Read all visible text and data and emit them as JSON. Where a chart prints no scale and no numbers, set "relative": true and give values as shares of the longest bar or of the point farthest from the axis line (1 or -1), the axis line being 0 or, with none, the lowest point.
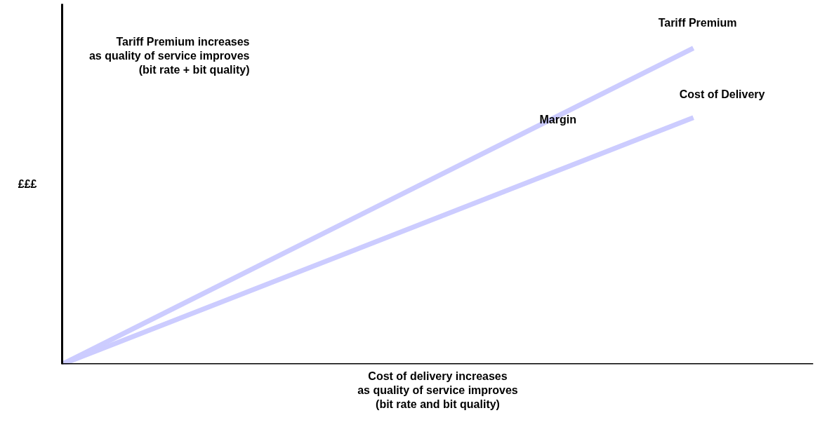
{
  "chart_data": {
    "type": "line",
    "relative": true,
    "categories": [
      null,
      null
    ],
    "xlabel": "Cost of delivery increases\nas quality of service improves\n(bit rate and bit quality)",
    "ylabel": "£££",
    "annotations": [
      "Tariff Premium increases\nas quality of service improves\n(bit rate + bit quality)",
      "Margin"
    ],
    "series": [
      {
        "name": "Tariff Premium",
        "color": "#ccccff",
        "values": [
          0,
          1
        ]
      },
      {
        "name": "Cost of Delivery",
        "color": "#ccccff",
        "values": [
          0,
          0.78
        ]
      }
    ],
    "ref_lines": [
      {
        "axis": "y",
        "value": 0,
        "color": "#000000"
      }
    ],
    "grid": false,
    "legend": false,
    "marker": "none",
    "line_style": "solid"
  }
}
